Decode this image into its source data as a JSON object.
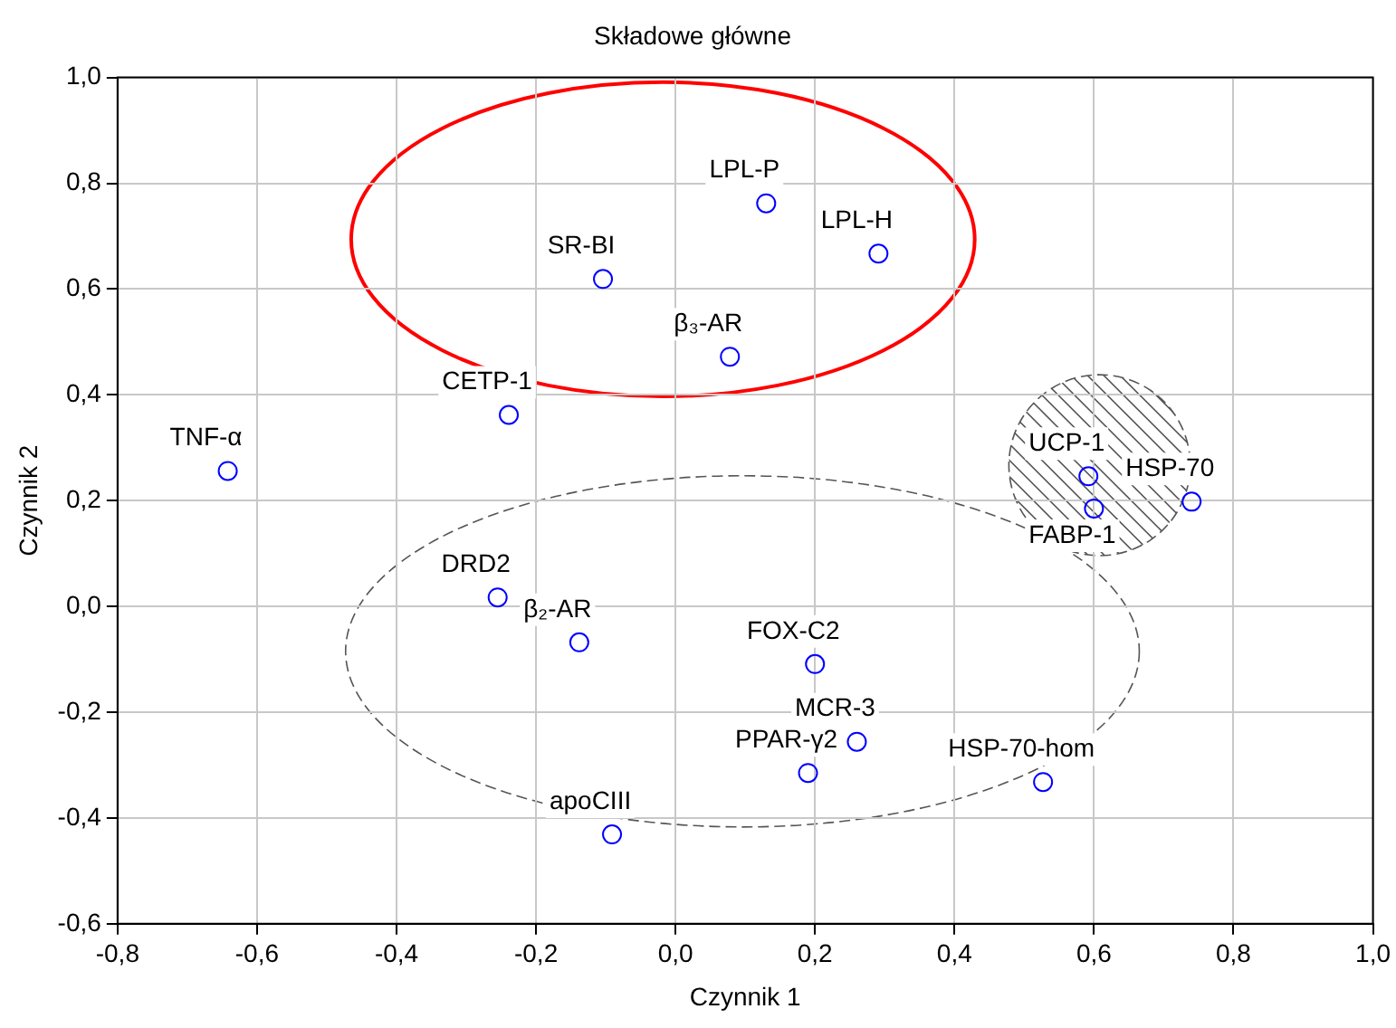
{
  "chart_data": {
    "type": "scatter",
    "title": "Składowe główne",
    "xlabel": "Czynnik 1",
    "ylabel": "Czynnik 2",
    "x": [
      -0.642,
      -0.239,
      -0.104,
      0.078,
      0.13,
      0.291,
      0.592,
      0.6,
      0.74,
      -0.255,
      -0.138,
      0.2,
      0.26,
      0.19,
      0.527,
      -0.091
    ],
    "series": [
      {
        "color": "#0000ff",
        "values": [
          0.256,
          0.362,
          0.619,
          0.472,
          0.762,
          0.667,
          0.246,
          0.185,
          0.198,
          0.017,
          -0.068,
          -0.109,
          -0.256,
          -0.315,
          -0.332,
          -0.431
        ]
      }
    ],
    "annotations": [
      {
        "text": "TNF-α",
        "x": -0.642,
        "y": 0.256
      },
      {
        "text": "CETP-1",
        "x": -0.239,
        "y": 0.362
      },
      {
        "text": "SR-BI",
        "x": -0.104,
        "y": 0.619
      },
      {
        "text": "β₃-AR",
        "x": 0.078,
        "y": 0.472
      },
      {
        "text": "LPL-P",
        "x": 0.13,
        "y": 0.762
      },
      {
        "text": "LPL-H",
        "x": 0.291,
        "y": 0.667
      },
      {
        "text": "UCP-1",
        "x": 0.592,
        "y": 0.246
      },
      {
        "text": "FABP-1",
        "x": 0.6,
        "y": 0.185
      },
      {
        "text": "HSP-70",
        "x": 0.74,
        "y": 0.198
      },
      {
        "text": "DRD2",
        "x": -0.255,
        "y": 0.017
      },
      {
        "text": "β₂-AR",
        "x": -0.138,
        "y": -0.068
      },
      {
        "text": "FOX-C2",
        "x": 0.2,
        "y": -0.109
      },
      {
        "text": "MCR-3",
        "x": 0.26,
        "y": -0.256
      },
      {
        "text": "PPAR-γ2",
        "x": 0.19,
        "y": -0.315
      },
      {
        "text": "HSP-70-hom",
        "x": 0.527,
        "y": -0.332
      },
      {
        "text": "apoCIII",
        "x": -0.091,
        "y": -0.431
      }
    ],
    "xlim": [
      -0.8,
      1.0
    ],
    "xticks": [
      {
        "value": -0.8,
        "label": "-0,8"
      },
      {
        "value": -0.6,
        "label": "-0,6"
      },
      {
        "value": -0.4,
        "label": "-0,4"
      },
      {
        "value": -0.2,
        "label": "-0,2"
      },
      {
        "value": 0,
        "label": "0,0"
      },
      {
        "value": 0.2,
        "label": "0,2"
      },
      {
        "value": 0.4,
        "label": "0,4"
      },
      {
        "value": 0.6,
        "label": "0,6"
      },
      {
        "value": 0.8,
        "label": "0,8"
      },
      {
        "value": 1.0,
        "label": "1,0"
      }
    ],
    "ylim": [
      -0.6,
      1.0
    ],
    "yticks": [
      {
        "value": -0.6,
        "label": "-0,6"
      },
      {
        "value": -0.4,
        "label": "-0,4"
      },
      {
        "value": -0.2,
        "label": "-0,2"
      },
      {
        "value": 0,
        "label": "0,0"
      },
      {
        "value": 0.2,
        "label": "0,2"
      },
      {
        "value": 0.4,
        "label": "0,4"
      },
      {
        "value": 0.6,
        "label": "0,6"
      },
      {
        "value": 0.8,
        "label": "0,8"
      },
      {
        "value": 1.0,
        "label": "1,0"
      }
    ],
    "grid": true,
    "marker": "circle",
    "legend": false
  }
}
